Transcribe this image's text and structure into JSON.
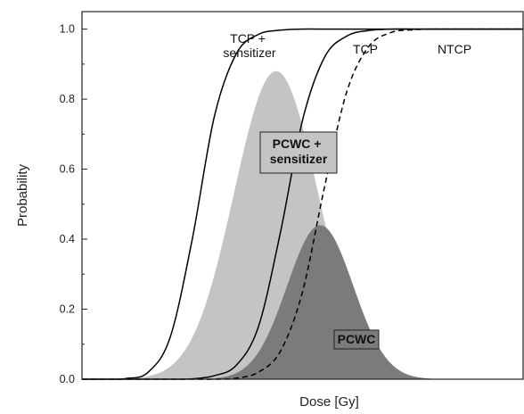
{
  "chart_data": {
    "type": "area",
    "xlabel": "Dose [Gy]",
    "ylabel": "Probability",
    "xlim": [
      0,
      100
    ],
    "ylim": [
      0,
      1.05
    ],
    "x_ticks_labeled": false,
    "yticks": [
      0.0,
      0.2,
      0.4,
      0.6,
      0.8,
      1.0
    ],
    "ytick_labels": [
      "0.0",
      "0.2",
      "0.4",
      "0.6",
      "0.8",
      "1.0"
    ],
    "grid": false,
    "curves": [
      {
        "label": "TCP +\nsensitizer",
        "style": "solid",
        "color": "#000000",
        "x": [
          0,
          5,
          10,
          15,
          20,
          25,
          30,
          35,
          40,
          45,
          50,
          55,
          60,
          65,
          70,
          75,
          80,
          85,
          90,
          95,
          100
        ],
        "y": [
          0.0,
          0.0,
          0.002,
          0.02,
          0.12,
          0.4,
          0.75,
          0.93,
          0.985,
          0.997,
          1.0,
          1.0,
          1.0,
          1.0,
          1.0,
          1.0,
          1.0,
          1.0,
          1.0,
          1.0,
          1.0
        ]
      },
      {
        "label": "TCP",
        "style": "solid",
        "color": "#000000",
        "x": [
          0,
          5,
          10,
          15,
          20,
          25,
          30,
          35,
          40,
          45,
          50,
          55,
          60,
          65,
          70,
          75,
          80,
          85,
          90,
          95,
          100
        ],
        "y": [
          0.0,
          0.0,
          0.0,
          0.0,
          0.0,
          0.001,
          0.01,
          0.04,
          0.15,
          0.42,
          0.74,
          0.92,
          0.98,
          0.996,
          1.0,
          1.0,
          1.0,
          1.0,
          1.0,
          1.0,
          1.0
        ]
      },
      {
        "label": "NTCP",
        "style": "dashed",
        "color": "#000000",
        "x": [
          0,
          5,
          10,
          15,
          20,
          25,
          30,
          35,
          40,
          45,
          50,
          55,
          60,
          65,
          70,
          75,
          80,
          85,
          90,
          95,
          100
        ],
        "y": [
          0.0,
          0.0,
          0.0,
          0.0,
          0.0,
          0.0,
          0.0,
          0.003,
          0.02,
          0.08,
          0.25,
          0.55,
          0.82,
          0.95,
          0.99,
          0.998,
          1.0,
          1.0,
          1.0,
          1.0,
          1.0
        ]
      }
    ],
    "areas": [
      {
        "label": "PCWC +\nsensitizer",
        "fill": "#c4c4c4",
        "peak_x": 44,
        "peak_y": 0.88,
        "sigma": 9.5
      },
      {
        "label": "PCWC",
        "fill": "#7b7b7b",
        "peak_x": 54,
        "peak_y": 0.44,
        "sigma": 7.5
      }
    ],
    "annotations": {
      "tcp_sens": [
        "TCP +",
        "sensitizer"
      ],
      "tcp": "TCP",
      "ntcp": "NTCP",
      "pcwc_sens": [
        "PCWC +",
        "sensitizer"
      ],
      "pcwc": "PCWC"
    }
  }
}
